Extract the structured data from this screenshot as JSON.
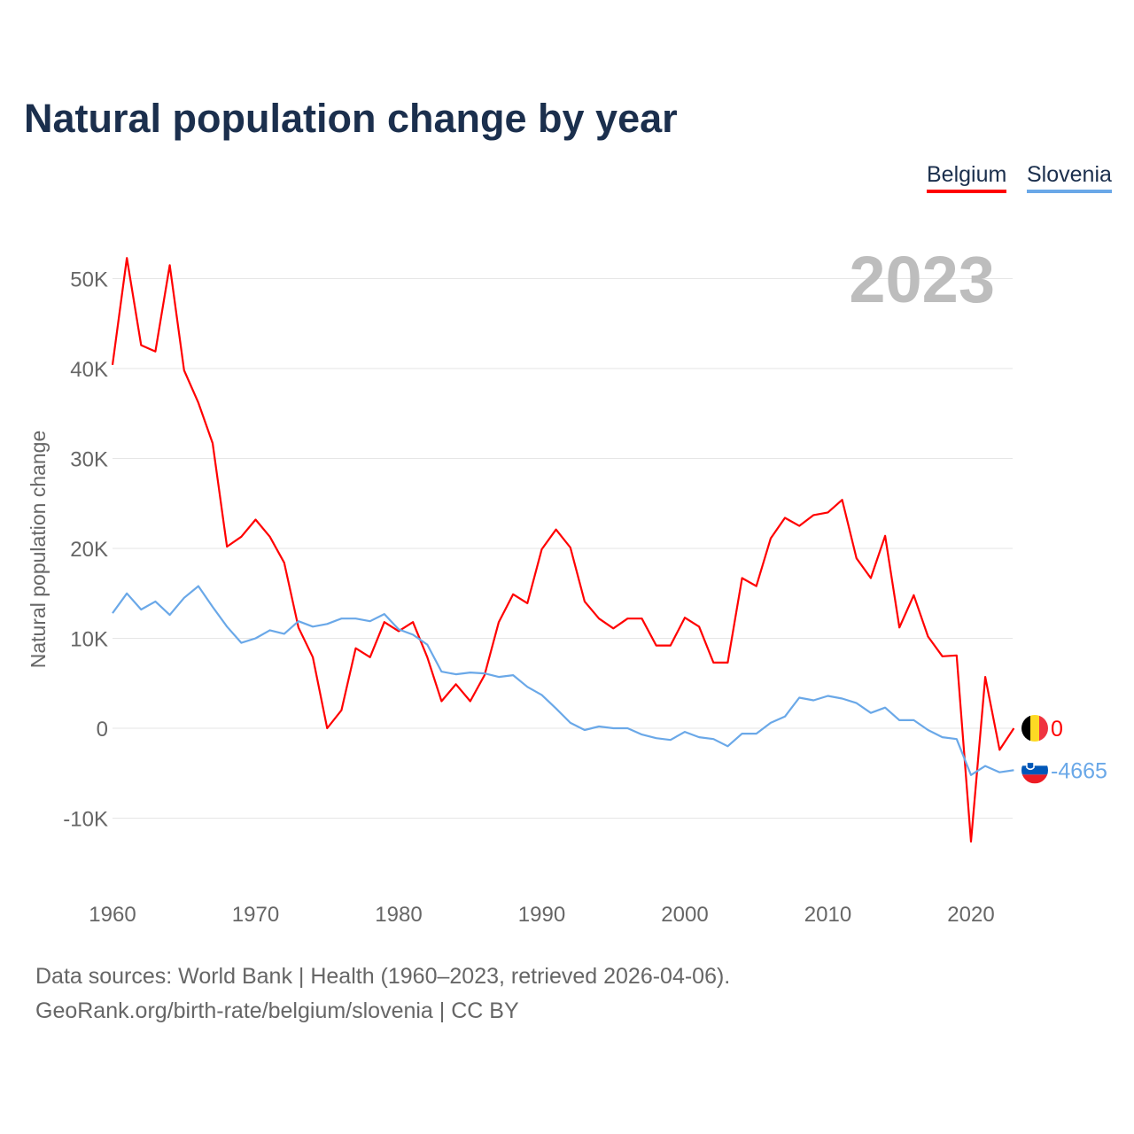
{
  "title": "Natural population change by year",
  "legend": [
    {
      "label": "Belgium",
      "color": "#ff0000"
    },
    {
      "label": "Slovenia",
      "color": "#6aa8e8"
    }
  ],
  "footer": {
    "line1": "Data sources: World Bank | Health (1960–2023, retrieved 2026-04-06).",
    "line2": "GeoRank.org/birth-rate/belgium/slovenia | CC BY"
  },
  "chart_data": {
    "type": "line",
    "title": "Natural population change by year",
    "ylabel": "Natural population change",
    "xlabel": "",
    "year_label": "2023",
    "xlim": [
      1960,
      2023
    ],
    "ylim": [
      -18000,
      55000
    ],
    "xticks": [
      1960,
      1970,
      1980,
      1990,
      2000,
      2010,
      2020
    ],
    "yticks": [
      {
        "v": -10000,
        "label": "-10K"
      },
      {
        "v": 0,
        "label": "0"
      },
      {
        "v": 10000,
        "label": "10K"
      },
      {
        "v": 20000,
        "label": "20K"
      },
      {
        "v": 30000,
        "label": "30K"
      },
      {
        "v": 40000,
        "label": "40K"
      },
      {
        "v": 50000,
        "label": "50K"
      }
    ],
    "grid": true,
    "legend_position": "top-right",
    "x_start": 1960,
    "series": [
      {
        "name": "Belgium",
        "color": "#ff0000",
        "end_label": "0",
        "flag": "belgium",
        "values": [
          40400,
          52300,
          42600,
          41900,
          51500,
          39800,
          36200,
          31700,
          20200,
          21300,
          23200,
          21300,
          18400,
          11200,
          7900,
          0,
          2000,
          8900,
          7900,
          11800,
          10800,
          11800,
          7900,
          3000,
          4900,
          3000,
          5900,
          11800,
          14900,
          13900,
          19900,
          22100,
          20100,
          14100,
          12200,
          11100,
          12200,
          12200,
          9200,
          9200,
          12300,
          11300,
          7300,
          7300,
          16700,
          15800,
          21100,
          23400,
          22500,
          23700,
          24000,
          25400,
          18900,
          16700,
          21400,
          11200,
          14800,
          10200,
          8000,
          8100,
          -12600,
          5700,
          -2400,
          0
        ]
      },
      {
        "name": "Slovenia",
        "color": "#6aa8e8",
        "end_label": "-4665",
        "flag": "slovenia",
        "values": [
          12800,
          15000,
          13200,
          14100,
          12600,
          14500,
          15800,
          13500,
          11300,
          9500,
          10000,
          10900,
          10500,
          11900,
          11300,
          11600,
          12200,
          12200,
          11900,
          12700,
          11000,
          10400,
          9300,
          6300,
          6000,
          6200,
          6100,
          5700,
          5900,
          4600,
          3700,
          2200,
          600,
          -200,
          200,
          0,
          0,
          -700,
          -1100,
          -1300,
          -400,
          -1000,
          -1200,
          -2000,
          -600,
          -600,
          600,
          1300,
          3400,
          3100,
          3600,
          3300,
          2800,
          1700,
          2300,
          900,
          900,
          -200,
          -1000,
          -1200,
          -5200,
          -4200,
          -4900,
          -4665
        ]
      }
    ]
  }
}
